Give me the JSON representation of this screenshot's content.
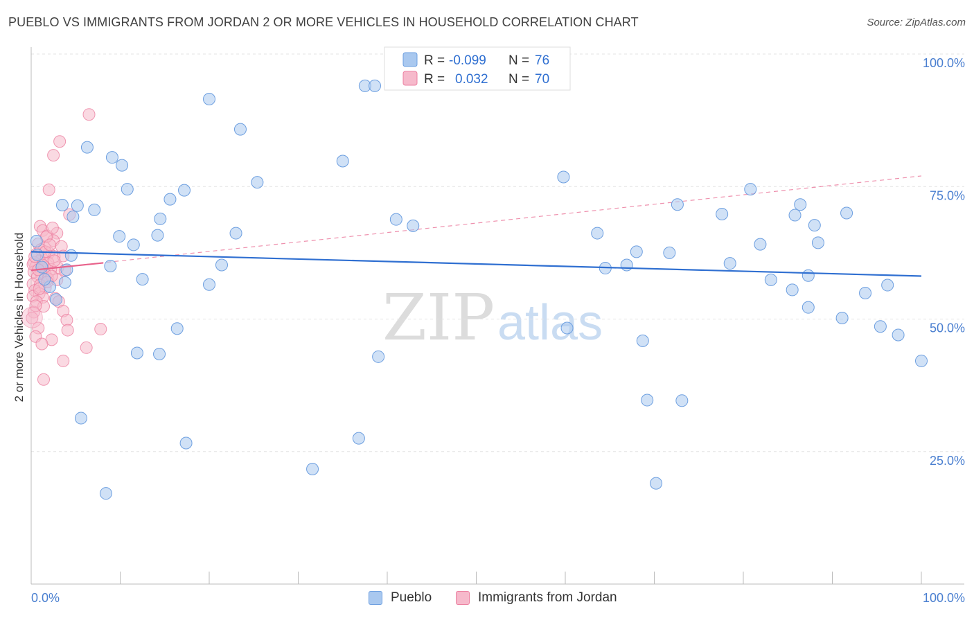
{
  "title": "PUEBLO VS IMMIGRANTS FROM JORDAN 2 OR MORE VEHICLES IN HOUSEHOLD CORRELATION CHART",
  "source": "Source: ZipAtlas.com",
  "watermark": {
    "zip": "ZIP",
    "atlas": "atlas"
  },
  "legend": {
    "pueblo": {
      "r_label": "R =",
      "r_value": "-0.099",
      "n_label": "N =",
      "n_value": "76"
    },
    "jordan": {
      "r_label": "R =",
      "r_value": "0.032",
      "n_label": "N =",
      "n_value": "70"
    }
  },
  "bottom_legend": {
    "pueblo": "Pueblo",
    "jordan": "Immigrants from Jordan"
  },
  "colors": {
    "pueblo_fill": "#a9c8ef",
    "pueblo_stroke": "#6d9fe0",
    "pueblo_line": "#2f6fd1",
    "jordan_fill": "#f6b9cb",
    "jordan_stroke": "#ec7fa0",
    "jordan_line": "#e8628b"
  },
  "chart_data": {
    "type": "scatter",
    "title": "PUEBLO VS IMMIGRANTS FROM JORDAN 2 OR MORE VEHICLES IN HOUSEHOLD CORRELATION CHART",
    "xlabel": "",
    "ylabel": "2 or more Vehicles in Household",
    "xlim": [
      0,
      100
    ],
    "ylim": [
      0,
      102
    ],
    "x_tick_labels": [
      "0.0%",
      "100.0%"
    ],
    "y_ticks": [
      25,
      50,
      75,
      100
    ],
    "y_tick_labels": [
      "25.0%",
      "50.0%",
      "75.0%",
      "100.0%"
    ],
    "series": [
      {
        "name": "Pueblo",
        "trend": {
          "x": [
            0,
            100
          ],
          "y": [
            62.7,
            58.1
          ]
        },
        "points": [
          [
            20,
            91.5
          ],
          [
            23.5,
            85.8
          ],
          [
            37.5,
            94
          ],
          [
            38.6,
            94
          ],
          [
            6.3,
            82.4
          ],
          [
            9.1,
            80.5
          ],
          [
            10.2,
            79
          ],
          [
            35,
            79.8
          ],
          [
            25.4,
            75.8
          ],
          [
            59.8,
            76.8
          ],
          [
            10.8,
            74.5
          ],
          [
            17.2,
            74.3
          ],
          [
            15.6,
            72.6
          ],
          [
            3.5,
            71.5
          ],
          [
            5.2,
            71.4
          ],
          [
            7.1,
            70.6
          ],
          [
            4.7,
            69.3
          ],
          [
            14.5,
            68.9
          ],
          [
            41,
            68.8
          ],
          [
            42.9,
            67.6
          ],
          [
            72.6,
            71.6
          ],
          [
            77.6,
            69.8
          ],
          [
            80.8,
            74.5
          ],
          [
            85.8,
            69.6
          ],
          [
            86.4,
            71.6
          ],
          [
            88,
            67.7
          ],
          [
            91.6,
            70
          ],
          [
            9.9,
            65.6
          ],
          [
            14.2,
            65.8
          ],
          [
            23,
            66.2
          ],
          [
            63.6,
            66.2
          ],
          [
            11.5,
            64
          ],
          [
            81.9,
            64.1
          ],
          [
            88.4,
            64.4
          ],
          [
            68,
            62.7
          ],
          [
            71.7,
            62.5
          ],
          [
            4.5,
            62
          ],
          [
            21.4,
            60.2
          ],
          [
            8.9,
            60
          ],
          [
            64.5,
            59.6
          ],
          [
            66.9,
            60.2
          ],
          [
            78.5,
            60.5
          ],
          [
            4,
            59.3
          ],
          [
            87.3,
            58.2
          ],
          [
            3.8,
            56.9
          ],
          [
            12.5,
            57.5
          ],
          [
            20,
            56.5
          ],
          [
            83.1,
            57.4
          ],
          [
            85.5,
            55.5
          ],
          [
            96.2,
            56.4
          ],
          [
            2.1,
            56.1
          ],
          [
            2.8,
            53.7
          ],
          [
            93.7,
            54.9
          ],
          [
            87.3,
            52.2
          ],
          [
            91.1,
            50.2
          ],
          [
            16.4,
            48.2
          ],
          [
            60.2,
            48.3
          ],
          [
            95.4,
            48.6
          ],
          [
            97.4,
            47
          ],
          [
            68.7,
            45.9
          ],
          [
            11.9,
            43.6
          ],
          [
            14.4,
            43.4
          ],
          [
            39,
            42.9
          ],
          [
            100,
            42.1
          ],
          [
            69.2,
            34.7
          ],
          [
            73.1,
            34.6
          ],
          [
            5.6,
            31.3
          ],
          [
            17.4,
            26.6
          ],
          [
            36.8,
            27.5
          ],
          [
            31.6,
            21.7
          ],
          [
            70.2,
            19
          ],
          [
            8.4,
            17.1
          ],
          [
            0.7,
            62.1
          ],
          [
            1.2,
            59.8
          ],
          [
            1.5,
            57.5
          ],
          [
            0.6,
            64.7
          ]
        ]
      },
      {
        "name": "Immigrants from Jordan",
        "trend": {
          "x": [
            0,
            8.1
          ],
          "y": [
            59.2,
            60.6
          ]
        },
        "trend_extended": {
          "x": [
            0,
            100
          ],
          "y": [
            59.2,
            77
          ]
        },
        "points": [
          [
            6.5,
            88.6
          ],
          [
            3.2,
            83.5
          ],
          [
            2.5,
            80.9
          ],
          [
            2,
            74.4
          ],
          [
            1,
            67.5
          ],
          [
            1.3,
            66.7
          ],
          [
            2.9,
            66.2
          ],
          [
            4.3,
            69.7
          ],
          [
            1.8,
            65.7
          ],
          [
            2.5,
            64.8
          ],
          [
            0.8,
            64.2
          ],
          [
            1.5,
            63.5
          ],
          [
            3.4,
            63.7
          ],
          [
            2,
            62.5
          ],
          [
            0.6,
            62.3
          ],
          [
            1.2,
            61.5
          ],
          [
            2.6,
            61.8
          ],
          [
            3.6,
            61.9
          ],
          [
            1,
            61
          ],
          [
            1.9,
            60.6
          ],
          [
            0.3,
            60.7
          ],
          [
            0.5,
            59.9
          ],
          [
            1.5,
            59.8
          ],
          [
            3,
            59.7
          ],
          [
            2.2,
            59.4
          ],
          [
            3.8,
            59.2
          ],
          [
            0.3,
            58.9
          ],
          [
            1.1,
            58.6
          ],
          [
            1.6,
            58.4
          ],
          [
            0.7,
            58
          ],
          [
            1.9,
            57.6
          ],
          [
            2.9,
            57.4
          ],
          [
            0.2,
            56.6
          ],
          [
            1,
            56.4
          ],
          [
            1.6,
            55.9
          ],
          [
            0.4,
            55.4
          ],
          [
            0.9,
            54.8
          ],
          [
            0.2,
            54.3
          ],
          [
            1.3,
            54.1
          ],
          [
            2.7,
            53.9
          ],
          [
            0.6,
            53.3
          ],
          [
            3.1,
            53.3
          ],
          [
            1.4,
            52.4
          ],
          [
            0.3,
            51.3
          ],
          [
            3.6,
            51.5
          ],
          [
            0.1,
            50.2
          ],
          [
            4,
            49.8
          ],
          [
            0.8,
            48.3
          ],
          [
            4.1,
            47.9
          ],
          [
            7.8,
            48.1
          ],
          [
            0.5,
            46.7
          ],
          [
            2.3,
            46.1
          ],
          [
            1.2,
            45.3
          ],
          [
            6.2,
            44.6
          ],
          [
            3.6,
            42.1
          ],
          [
            1.4,
            38.6
          ],
          [
            1.7,
            65.5
          ],
          [
            2.4,
            67.2
          ],
          [
            0.2,
            60.3
          ],
          [
            1.1,
            63.1
          ],
          [
            2.3,
            58.1
          ],
          [
            0.9,
            55.7
          ],
          [
            1.8,
            57
          ],
          [
            0.5,
            52.5
          ],
          [
            2.6,
            61
          ],
          [
            1.3,
            60.2
          ],
          [
            0.4,
            61.8
          ],
          [
            1.6,
            62.7
          ],
          [
            0.8,
            59.3
          ],
          [
            2.1,
            64
          ]
        ]
      }
    ]
  }
}
